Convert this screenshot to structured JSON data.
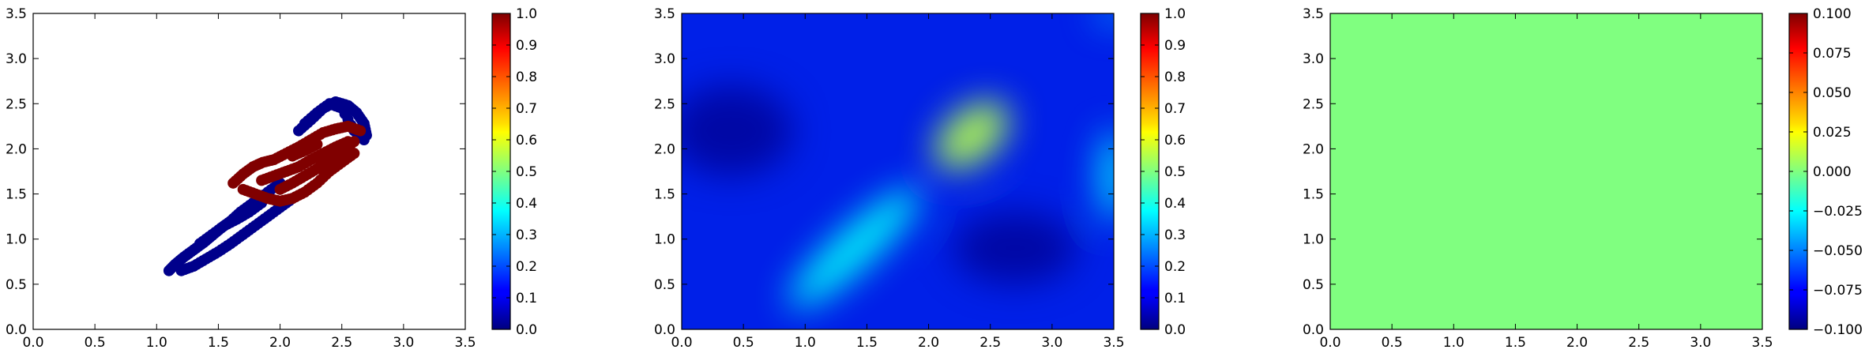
{
  "chart_data": [
    {
      "type": "scatter",
      "xlim": [
        0.0,
        3.5
      ],
      "ylim": [
        0.0,
        3.5
      ],
      "x_ticks": [
        "0.0",
        "0.5",
        "1.0",
        "1.5",
        "2.0",
        "2.5",
        "3.0",
        "3.5"
      ],
      "y_ticks": [
        "0.0",
        "0.5",
        "1.0",
        "1.5",
        "2.0",
        "2.5",
        "3.0",
        "3.5"
      ],
      "colormap": "jet",
      "colorbar": {
        "range": [
          0.0,
          1.0
        ],
        "ticks": [
          "0.0",
          "0.1",
          "0.2",
          "0.3",
          "0.4",
          "0.5",
          "0.6",
          "0.7",
          "0.8",
          "0.9",
          "1.0"
        ]
      },
      "series": [
        {
          "value": 0.0,
          "color": "#00008b",
          "points": [
            [
              1.1,
              0.65
            ],
            [
              1.15,
              0.72
            ],
            [
              1.22,
              0.8
            ],
            [
              1.3,
              0.88
            ],
            [
              1.38,
              0.96
            ],
            [
              1.45,
              1.04
            ],
            [
              1.52,
              1.12
            ],
            [
              1.6,
              1.2
            ],
            [
              1.68,
              1.3
            ],
            [
              1.78,
              1.4
            ],
            [
              1.9,
              1.52
            ],
            [
              2.0,
              1.62
            ],
            [
              1.2,
              0.65
            ],
            [
              1.3,
              0.7
            ],
            [
              1.4,
              0.78
            ],
            [
              1.5,
              0.86
            ],
            [
              1.6,
              0.95
            ],
            [
              1.7,
              1.05
            ],
            [
              1.8,
              1.15
            ],
            [
              1.9,
              1.25
            ],
            [
              2.0,
              1.35
            ],
            [
              2.1,
              1.45
            ],
            [
              1.35,
              0.95
            ],
            [
              1.45,
              1.05
            ],
            [
              1.55,
              1.15
            ],
            [
              1.65,
              1.22
            ],
            [
              1.75,
              1.3
            ],
            [
              1.85,
              1.4
            ],
            [
              2.15,
              2.2
            ],
            [
              2.25,
              2.32
            ],
            [
              2.35,
              2.45
            ],
            [
              2.45,
              2.52
            ],
            [
              2.55,
              2.48
            ],
            [
              2.62,
              2.4
            ],
            [
              2.68,
              2.28
            ],
            [
              2.7,
              2.15
            ],
            [
              2.2,
              2.28
            ],
            [
              2.3,
              2.4
            ],
            [
              2.4,
              2.5
            ],
            [
              2.5,
              2.45
            ],
            [
              2.6,
              2.2
            ],
            [
              2.68,
              2.1
            ]
          ]
        },
        {
          "value": 1.0,
          "color": "#800000",
          "points": [
            [
              1.62,
              1.62
            ],
            [
              1.7,
              1.72
            ],
            [
              1.78,
              1.8
            ],
            [
              1.86,
              1.85
            ],
            [
              1.95,
              1.88
            ],
            [
              2.05,
              1.95
            ],
            [
              2.15,
              2.02
            ],
            [
              2.25,
              2.1
            ],
            [
              2.35,
              2.18
            ],
            [
              2.45,
              2.22
            ],
            [
              2.55,
              2.25
            ],
            [
              2.65,
              2.2
            ],
            [
              1.7,
              1.55
            ],
            [
              1.8,
              1.5
            ],
            [
              1.9,
              1.45
            ],
            [
              2.0,
              1.42
            ],
            [
              2.1,
              1.45
            ],
            [
              2.2,
              1.52
            ],
            [
              2.3,
              1.62
            ],
            [
              2.4,
              1.75
            ],
            [
              2.5,
              1.85
            ],
            [
              2.6,
              1.95
            ],
            [
              1.85,
              1.65
            ],
            [
              1.95,
              1.7
            ],
            [
              2.05,
              1.75
            ],
            [
              2.15,
              1.8
            ],
            [
              2.25,
              1.88
            ],
            [
              2.35,
              1.95
            ],
            [
              2.45,
              2.02
            ],
            [
              2.55,
              2.08
            ],
            [
              2.0,
              1.55
            ],
            [
              2.1,
              1.62
            ],
            [
              2.2,
              1.7
            ],
            [
              2.3,
              1.78
            ],
            [
              2.4,
              1.88
            ],
            [
              2.5,
              1.98
            ],
            [
              2.6,
              2.08
            ],
            [
              2.1,
              1.92
            ],
            [
              2.2,
              1.98
            ],
            [
              2.3,
              2.05
            ]
          ]
        }
      ]
    },
    {
      "type": "heatmap",
      "xlim": [
        0.0,
        3.5
      ],
      "ylim": [
        0.0,
        3.5
      ],
      "x_ticks": [
        "0.0",
        "0.5",
        "1.0",
        "1.5",
        "2.0",
        "2.5",
        "3.0",
        "3.5"
      ],
      "y_ticks": [
        "0.0",
        "0.5",
        "1.0",
        "1.5",
        "2.0",
        "2.5",
        "3.0",
        "3.5"
      ],
      "colormap": "jet",
      "colorbar": {
        "range": [
          0.0,
          1.0
        ],
        "ticks": [
          "0.0",
          "0.1",
          "0.2",
          "0.3",
          "0.4",
          "0.5",
          "0.6",
          "0.7",
          "0.8",
          "0.9",
          "1.0"
        ]
      },
      "background_value": 0.15,
      "features": [
        {
          "x": 1.4,
          "y": 0.9,
          "sx": 0.7,
          "sy": 0.22,
          "angle_deg": 42,
          "value": 0.38
        },
        {
          "x": 2.35,
          "y": 2.15,
          "sx": 0.35,
          "sy": 0.28,
          "angle_deg": 40,
          "value": 0.55
        },
        {
          "x": 3.5,
          "y": 1.7,
          "sx": 0.12,
          "sy": 0.5,
          "angle_deg": 0,
          "value": 0.35
        },
        {
          "x": 3.5,
          "y": 3.5,
          "sx": 0.15,
          "sy": 0.1,
          "angle_deg": 0,
          "value": 0.3
        },
        {
          "x": 2.7,
          "y": 0.9,
          "sx": 0.5,
          "sy": 0.4,
          "angle_deg": 0,
          "value": -0.1
        },
        {
          "x": 0.4,
          "y": 2.2,
          "sx": 0.5,
          "sy": 0.5,
          "angle_deg": 0,
          "value": -0.06
        }
      ]
    },
    {
      "type": "heatmap",
      "xlim": [
        0.0,
        3.5
      ],
      "ylim": [
        0.0,
        3.5
      ],
      "x_ticks": [
        "0.0",
        "0.5",
        "1.0",
        "1.5",
        "2.0",
        "2.5",
        "3.0",
        "3.5"
      ],
      "y_ticks": [
        "0.0",
        "0.5",
        "1.0",
        "1.5",
        "2.0",
        "2.5",
        "3.0",
        "3.5"
      ],
      "colormap": "jet",
      "colorbar": {
        "range": [
          -0.1,
          0.1
        ],
        "ticks": [
          "−0.100",
          "−0.075",
          "−0.050",
          "−0.025",
          "0.000",
          "0.025",
          "0.050",
          "0.075",
          "0.100"
        ]
      },
      "uniform_value": 0.0,
      "fill_color": "#80ff80"
    }
  ]
}
